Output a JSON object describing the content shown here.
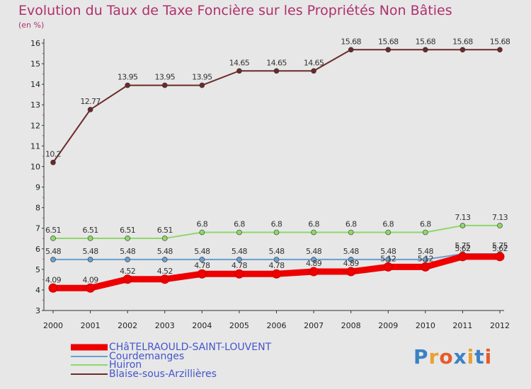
{
  "chart_data": {
    "type": "line",
    "title": "Evolution du Taux de Taxe Foncière sur les Propriétés Non Bâties",
    "subtitle": "(en %)",
    "xlabel": "",
    "ylabel": "",
    "categories": [
      "2000",
      "2001",
      "2002",
      "2003",
      "2004",
      "2005",
      "2006",
      "2007",
      "2008",
      "2009",
      "2010",
      "2011",
      "2012"
    ],
    "ylim": [
      3,
      16
    ],
    "yticks": [
      "3",
      "4",
      "5",
      "6",
      "7",
      "8",
      "9",
      "10",
      "11",
      "12",
      "13",
      "14",
      "15",
      "16"
    ],
    "grid": false,
    "legend_position": "bottom-left",
    "series": [
      {
        "name": "Blaise-sous-Arzillières",
        "color": "#6b2a2a",
        "values": [
          10.2,
          12.77,
          13.95,
          13.95,
          13.95,
          14.65,
          14.65,
          14.65,
          15.68,
          15.68,
          15.68,
          15.68,
          15.68
        ],
        "labels": [
          "10.2",
          "12.77",
          "13.95",
          "13.95",
          "13.95",
          "14.65",
          "14.65",
          "14.65",
          "15.68",
          "15.68",
          "15.68",
          "15.68",
          "15.68"
        ]
      },
      {
        "name": "Huiron",
        "color": "#8ed86a",
        "values": [
          6.51,
          6.51,
          6.51,
          6.51,
          6.8,
          6.8,
          6.8,
          6.8,
          6.8,
          6.8,
          6.8,
          7.13,
          7.13
        ],
        "labels": [
          "6.51",
          "6.51",
          "6.51",
          "6.51",
          "6.8",
          "6.8",
          "6.8",
          "6.8",
          "6.8",
          "6.8",
          "6.8",
          "7.13",
          "7.13"
        ]
      },
      {
        "name": "Courdemanges",
        "color": "#6a9fd0",
        "values": [
          5.48,
          5.48,
          5.48,
          5.48,
          5.48,
          5.48,
          5.48,
          5.48,
          5.48,
          5.48,
          5.48,
          5.75,
          5.75
        ],
        "labels": [
          "5.48",
          "5.48",
          "5.48",
          "5.48",
          "5.48",
          "5.48",
          "5.48",
          "5.48",
          "5.48",
          "5.48",
          "5.48",
          "5.75",
          "5.75"
        ]
      },
      {
        "name": "CHâTELRAOULD-SAINT-LOUVENT",
        "color": "#ee0000",
        "values": [
          4.09,
          4.09,
          4.52,
          4.52,
          4.78,
          4.78,
          4.78,
          4.89,
          4.89,
          5.12,
          5.12,
          5.62,
          5.62
        ],
        "labels": [
          "4.09",
          "4.09",
          "4.52",
          "4.52",
          "4.78",
          "4.78",
          "4.78",
          "4.89",
          "4.89",
          "5.12",
          "5.12",
          "5.62",
          "5.62"
        ]
      }
    ]
  },
  "legend": [
    {
      "label": "CHâTELRAOULD-SAINT-LOUVENT",
      "color": "#ee0000"
    },
    {
      "label": "Courdemanges",
      "color": "#6a9fd0"
    },
    {
      "label": "Huiron",
      "color": "#8ed86a"
    },
    {
      "label": "Blaise-sous-Arzillières",
      "color": "#6b2a2a"
    }
  ],
  "logo": {
    "text": "Proxiti",
    "colors": [
      "#3b82c4",
      "#e8a030",
      "#e85a2a",
      "#3b82c4",
      "#e8a030",
      "#3b82c4",
      "#e85a2a"
    ]
  }
}
